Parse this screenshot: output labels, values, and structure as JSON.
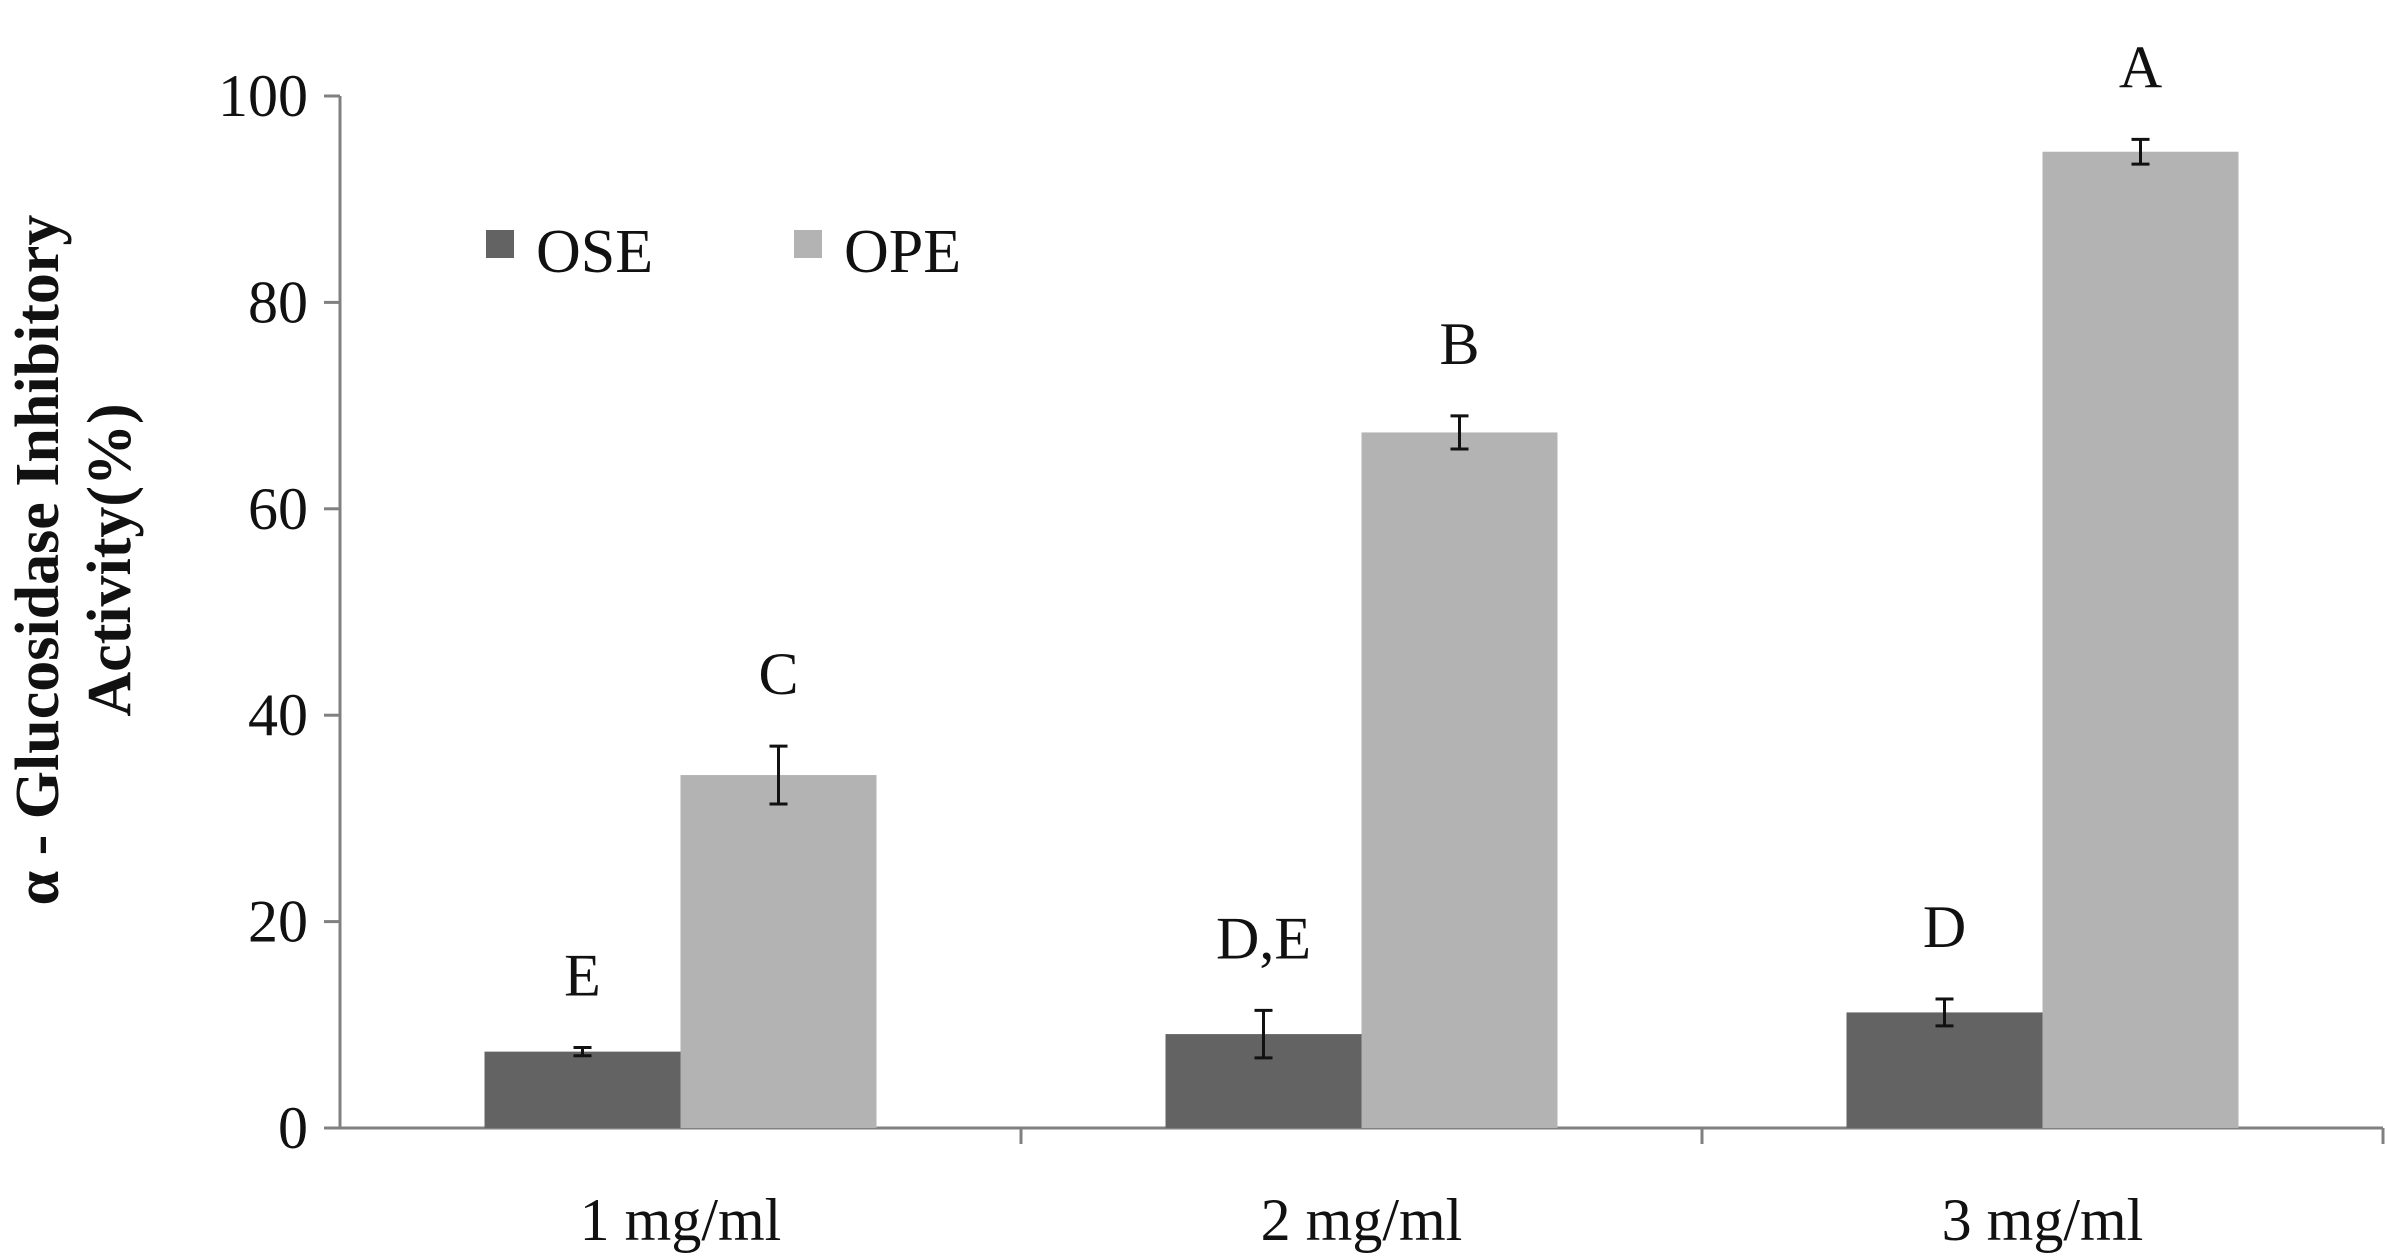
{
  "chart_data": {
    "type": "bar",
    "title": "",
    "xlabel": "",
    "ylabel_lines": [
      "α - Glucosidase Inhibitory",
      "Activity(%)"
    ],
    "categories": [
      "1 mg/ml",
      "2 mg/ml",
      "3 mg/ml"
    ],
    "ylim": [
      0,
      100
    ],
    "yticks": [
      0,
      20,
      40,
      60,
      80,
      100
    ],
    "ytick_labels": [
      "0",
      "20",
      "40",
      "60",
      "80",
      "100"
    ],
    "grid": false,
    "legend_position": "top-left",
    "series": [
      {
        "name": "OSE",
        "color": "#636363",
        "values": [
          7.4,
          9.1,
          11.2
        ],
        "errors": [
          0.4,
          2.3,
          1.3
        ],
        "annotations": [
          "E",
          "D,E",
          "D"
        ]
      },
      {
        "name": "OPE",
        "color": "#b3b3b3",
        "values": [
          34.2,
          67.4,
          94.6
        ],
        "errors": [
          2.8,
          1.6,
          1.2
        ],
        "annotations": [
          "C",
          "B",
          "A"
        ]
      }
    ]
  }
}
